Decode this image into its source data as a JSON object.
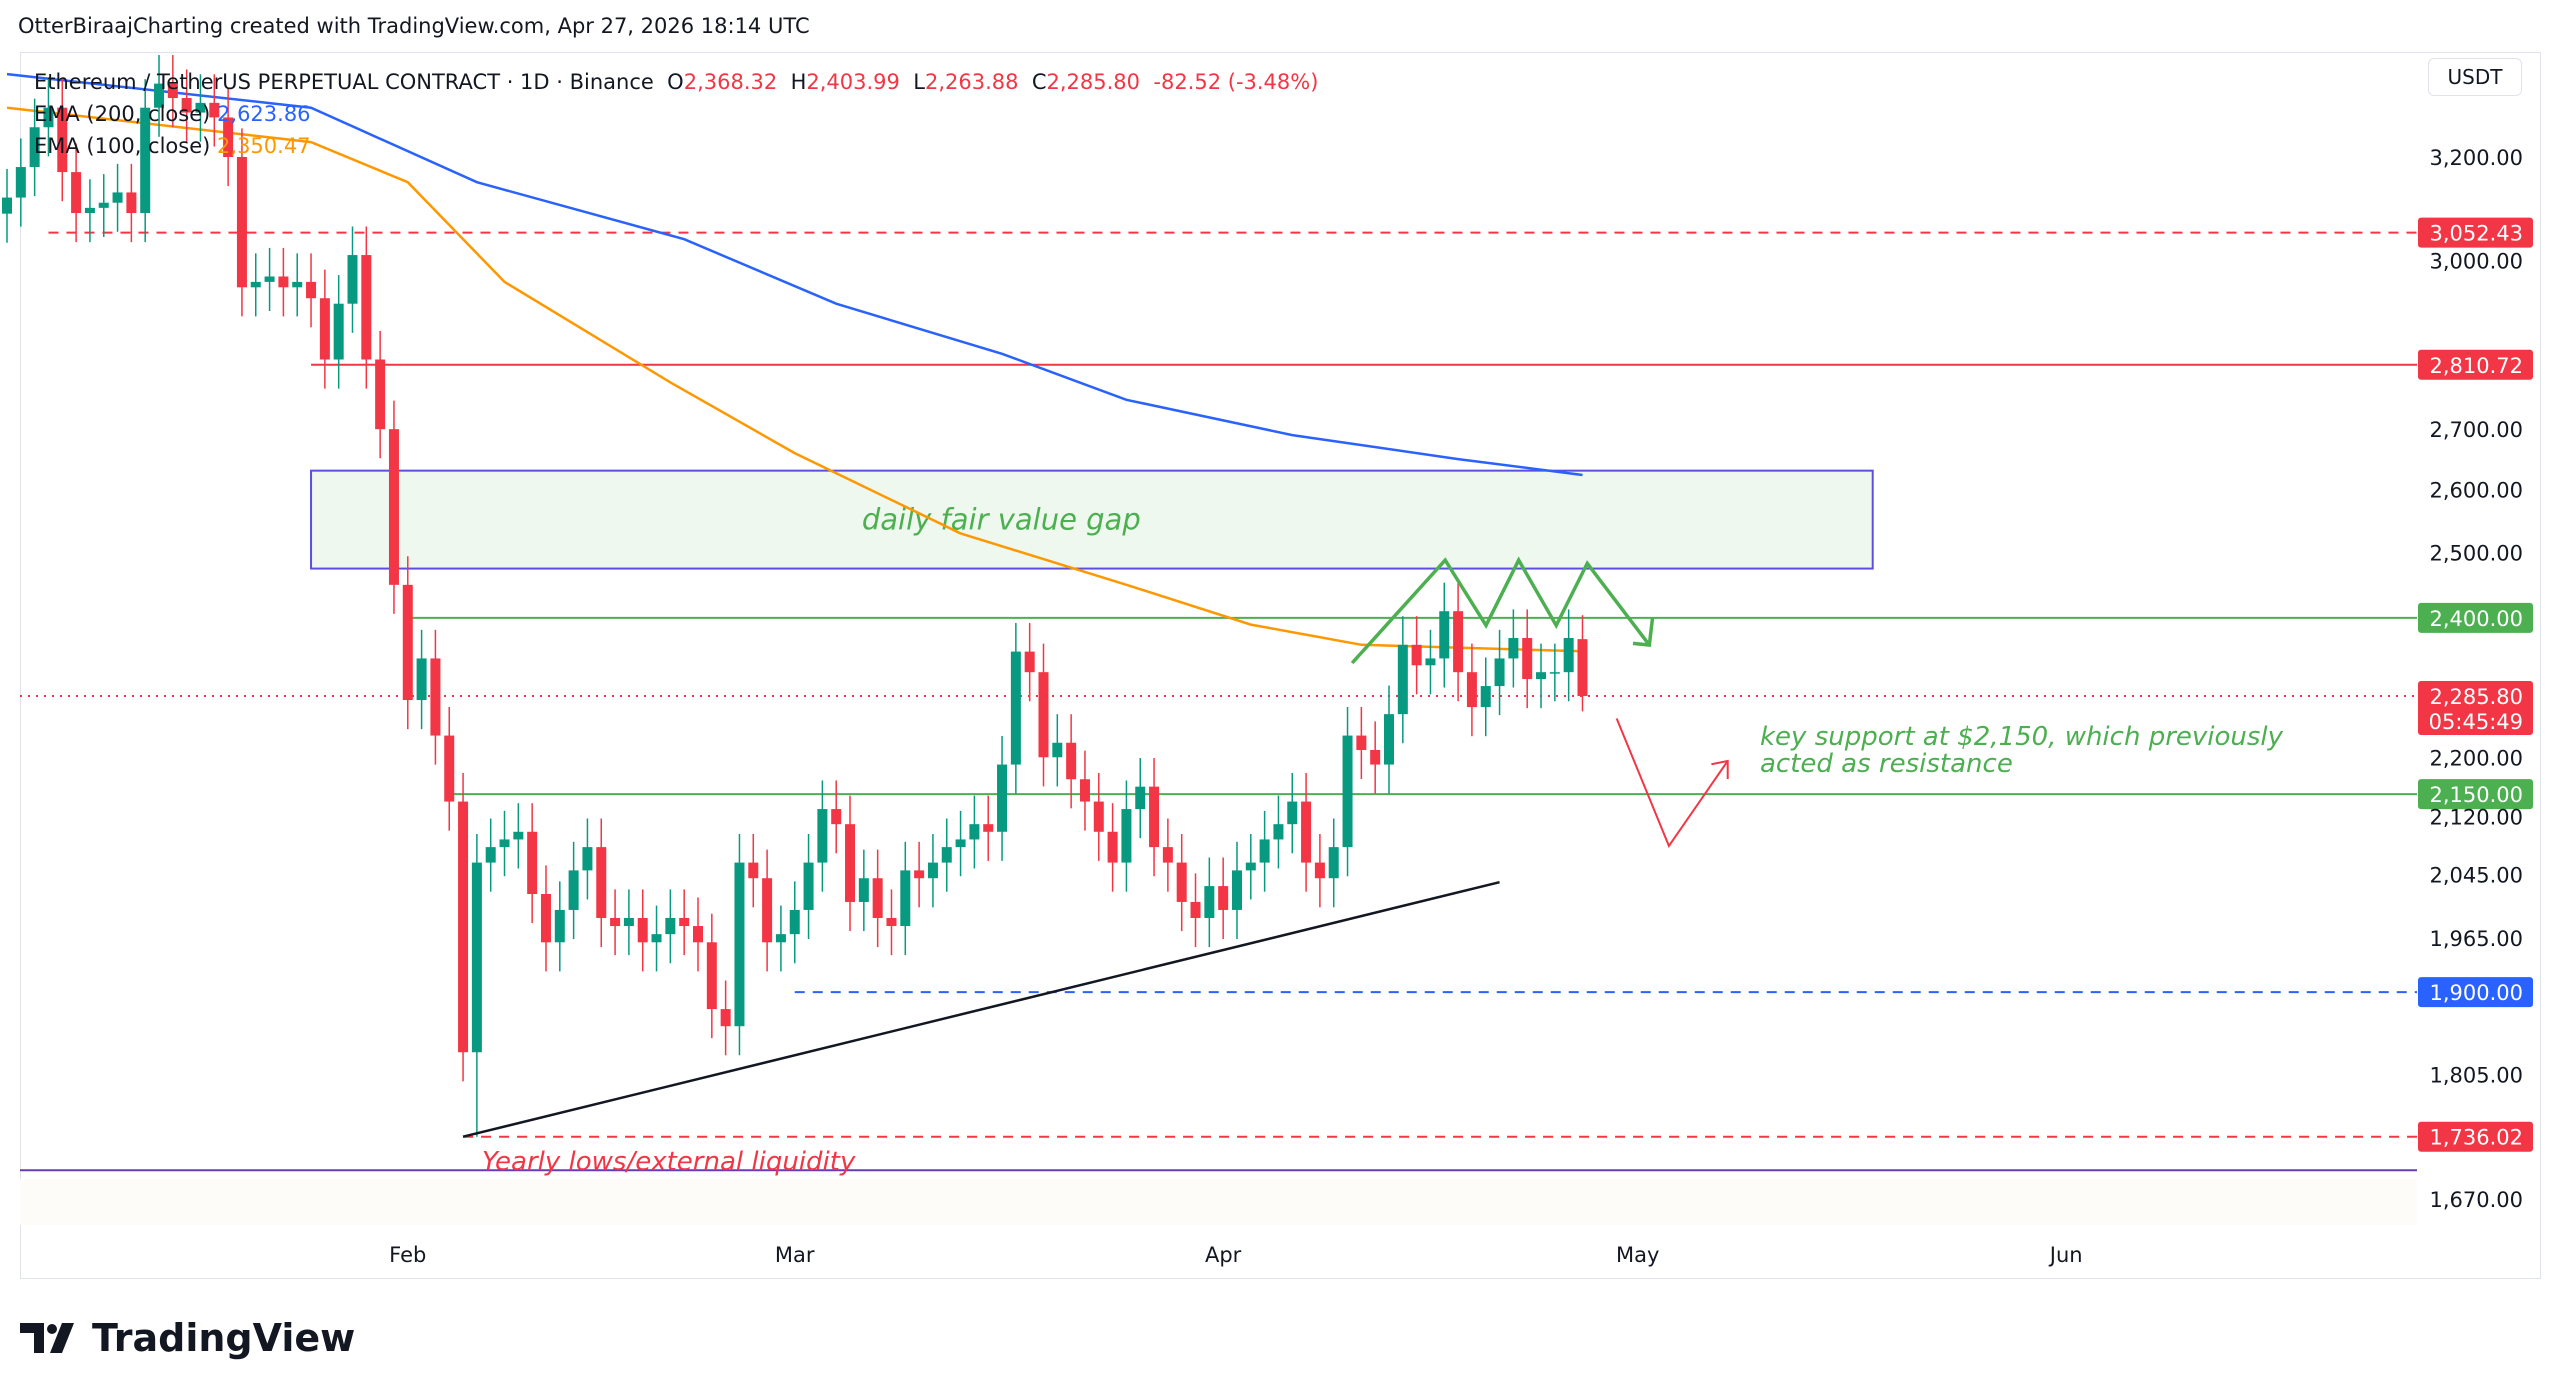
{
  "caption": "OtterBiraajCharting created with TradingView.com, Apr 27, 2026 18:14 UTC",
  "legend": {
    "symbol": "Ethereum / TetherUS PERPETUAL CONTRACT · 1D · Binance",
    "o_label": "O",
    "o": "2,368.32",
    "h_label": "H",
    "h": "2,403.99",
    "l_label": "L",
    "l": "2,263.88",
    "c_label": "C",
    "c": "2,285.80",
    "change": "-82.52 (-3.48%)",
    "ema200_label": "EMA (200, close)",
    "ema200_value": "2,623.86",
    "ema100_label": "EMA (100, close)",
    "ema100_value": "2,350.47"
  },
  "currency": "USDT",
  "logo": "TradingView",
  "colors": {
    "up": "#089981",
    "down": "#f23645",
    "ema200": "#2962ff",
    "ema100": "#ff9800",
    "annotation_green": "#4caf50",
    "annotation_red": "#f23645",
    "fvg_border": "#5c4ee0",
    "fvg_fill": "#eef8ef"
  },
  "chart_data": {
    "type": "candlestick",
    "yscale": "log",
    "ylim": [
      1640,
      3420
    ],
    "xlim": [
      "2026-01-03",
      "2026-06-30"
    ],
    "start_date": "2026-01-03",
    "close": [
      3120,
      3180,
      3260,
      3300,
      3170,
      3090,
      3100,
      3110,
      3130,
      3090,
      3300,
      3350,
      3320,
      3290,
      3310,
      3280,
      3200,
      2950,
      2960,
      2970,
      2950,
      2960,
      2930,
      2820,
      2920,
      3010,
      2820,
      2700,
      2450,
      2280,
      2340,
      2230,
      2140,
      1830,
      2060,
      2080,
      2090,
      2100,
      2020,
      1960,
      2000,
      2050,
      2080,
      1990,
      1980,
      1990,
      1960,
      1970,
      1990,
      1980,
      1960,
      1880,
      1860,
      2060,
      2040,
      1960,
      1970,
      2000,
      2060,
      2130,
      2110,
      2010,
      2040,
      1990,
      1980,
      2050,
      2040,
      2060,
      2080,
      2090,
      2110,
      2100,
      2190,
      2350,
      2320,
      2200,
      2220,
      2170,
      2140,
      2100,
      2060,
      2130,
      2160,
      2080,
      2060,
      2010,
      1990,
      2030,
      2000,
      2050,
      2060,
      2090,
      2110,
      2140,
      2060,
      2040,
      2080,
      2230,
      2210,
      2190,
      2260,
      2360,
      2330,
      2340,
      2410,
      2320,
      2270,
      2300,
      2340,
      2370,
      2310,
      2320,
      2320,
      2370,
      2285.8
    ],
    "last_candle": {
      "open": 2368.32,
      "high": 2403.99,
      "low": 2263.88,
      "close": 2285.8
    },
    "ema200": [
      [
        "2026-01-03",
        3370
      ],
      [
        "2026-01-25",
        3300
      ],
      [
        "2026-02-06",
        3150
      ],
      [
        "2026-02-21",
        3040
      ],
      [
        "2026-03-04",
        2920
      ],
      [
        "2026-03-16",
        2830
      ],
      [
        "2026-03-25",
        2750
      ],
      [
        "2026-04-06",
        2690
      ],
      [
        "2026-04-18",
        2650
      ],
      [
        "2026-04-27",
        2623.86
      ]
    ],
    "ema100": [
      [
        "2026-01-03",
        3300
      ],
      [
        "2026-01-25",
        3230
      ],
      [
        "2026-02-01",
        3150
      ],
      [
        "2026-02-08",
        2960
      ],
      [
        "2026-02-20",
        2780
      ],
      [
        "2026-03-01",
        2660
      ],
      [
        "2026-03-13",
        2530
      ],
      [
        "2026-03-25",
        2450
      ],
      [
        "2026-04-03",
        2390
      ],
      [
        "2026-04-11",
        2360
      ],
      [
        "2026-04-27",
        2350.47
      ]
    ],
    "y_ticks": [
      "3,200.00",
      "3,000.00",
      "2,700.00",
      "2,600.00",
      "2,500.00",
      "2,200.00",
      "2,120.00",
      "2,045.00",
      "1,965.00",
      "1,805.00",
      "1,670.00"
    ],
    "y_tick_values": [
      3200,
      3000,
      2700,
      2600,
      2500,
      2200,
      2120,
      2045,
      1965,
      1805,
      1670
    ],
    "x_ticks": [
      [
        "Feb",
        "2026-02-01"
      ],
      [
        "Mar",
        "2026-03-01"
      ],
      [
        "Apr",
        "2026-04-01"
      ],
      [
        "May",
        "2026-05-01"
      ],
      [
        "Jun",
        "2026-06-01"
      ]
    ],
    "levels": [
      {
        "price": 3052.43,
        "label": "3,052.43",
        "color": "#f23645",
        "style": "dashed",
        "from": "2026-01-06"
      },
      {
        "price": 2810.72,
        "label": "2,810.72",
        "color": "#f23645",
        "style": "solid",
        "from": "2026-01-25"
      },
      {
        "price": 2400.0,
        "label": "2,400.00",
        "color": "#4caf50",
        "style": "solid",
        "from": "2026-02-01"
      },
      {
        "price": 2150.0,
        "label": "2,150.00",
        "color": "#4caf50",
        "style": "solid",
        "from": "2026-02-04"
      },
      {
        "price": 1900.0,
        "label": "1,900.00",
        "color": "#2962ff",
        "style": "dashed",
        "from": "2026-03-01"
      },
      {
        "price": 1736.02,
        "label": "1,736.02",
        "color": "#f23645",
        "style": "dashed",
        "from": "2026-02-05"
      }
    ],
    "current_price": {
      "label": "2,285.80",
      "countdown": "05:45:49",
      "price": 2285.8
    },
    "bottom_line_price": 1700,
    "fvg": {
      "label": "daily fair value gap",
      "top": 2631,
      "bottom": 2475,
      "from": "2026-01-25",
      "to": "2026-05-18"
    },
    "trendline": [
      [
        "2026-02-05",
        1736.02
      ],
      [
        "2026-04-21",
        2035
      ]
    ],
    "annotations": {
      "support_note_line1": "key support at $2,150, which previously",
      "support_note_line2": "acted as resistance",
      "yearly_lows": "Yearly lows/external liquidity"
    }
  }
}
